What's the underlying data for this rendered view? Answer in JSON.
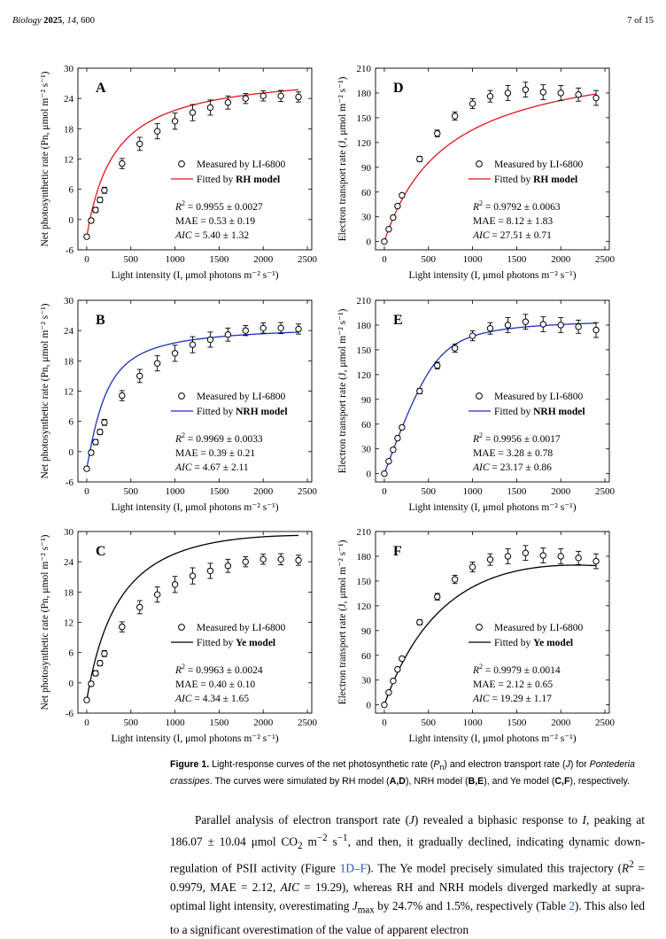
{
  "header": {
    "journal": "Biology",
    "year": "2025",
    "volume": "14",
    "article": "600",
    "page": "7 of 15"
  },
  "colors": {
    "rh": "#e0161e",
    "nrh": "#1f2fbf",
    "ye": "#000000"
  },
  "chart_data": [
    {
      "panel": "A",
      "type": "scatter",
      "fit_label_prefix": "Fitted by ",
      "fit_model": "RH model",
      "measured_label": "Measured by LI-6800",
      "xlabel": "Light intensity (I, μmol photons m⁻² s⁻¹)",
      "ylabel": "Net photosynthetic rate (Pn, μmol m⁻² s⁻¹)",
      "xlim": [
        -100,
        2550
      ],
      "ylim": [
        -6,
        30
      ],
      "xticks": [
        0,
        500,
        1000,
        1500,
        2000,
        2500
      ],
      "yticks": [
        -6,
        0,
        6,
        12,
        18,
        24,
        30
      ],
      "x": [
        0,
        50,
        100,
        150,
        200,
        400,
        600,
        800,
        1000,
        1200,
        1400,
        1600,
        1800,
        2000,
        2200,
        2400
      ],
      "y": [
        -3.4,
        -0.2,
        1.9,
        3.9,
        5.8,
        11.1,
        15.0,
        17.5,
        19.5,
        21.2,
        22.2,
        23.2,
        24.0,
        24.5,
        24.5,
        24.3
      ],
      "err": [
        0.4,
        0.4,
        0.5,
        0.5,
        0.6,
        1.0,
        1.3,
        1.5,
        1.6,
        1.6,
        1.5,
        1.3,
        1.0,
        1.0,
        1.1,
        1.0
      ],
      "fit": {
        "kind": "rh",
        "a": 0.104,
        "pmax": 33.0,
        "rd": 3.4
      },
      "stats": {
        "r2": "= 0.9955 ± 0.0027",
        "mae": "MAE = 0.53 ± 0.19",
        "aic": "= 5.40 ± 1.32"
      }
    },
    {
      "panel": "D",
      "type": "scatter",
      "fit_label_prefix": "Fitted by ",
      "fit_model": "RH model",
      "measured_label": "Measured by LI-6800",
      "xlabel": "Light intensity (I, μmol photons m⁻² s⁻¹)",
      "ylabel": "Electron transport rate (J, μmol m⁻² s⁻¹)",
      "xlim": [
        -100,
        2550
      ],
      "ylim": [
        -10,
        210
      ],
      "xticks": [
        0,
        500,
        1000,
        1500,
        2000,
        2500
      ],
      "yticks": [
        0,
        30,
        60,
        90,
        120,
        150,
        180,
        210
      ],
      "x": [
        0,
        50,
        100,
        150,
        200,
        400,
        600,
        800,
        1000,
        1200,
        1400,
        1600,
        1800,
        2000,
        2200,
        2400
      ],
      "y": [
        0,
        15,
        29,
        43,
        56,
        100,
        131,
        152,
        167,
        176,
        180,
        184,
        181,
        180,
        178,
        174
      ],
      "err": [
        1,
        1,
        2,
        2,
        2,
        3,
        4,
        5,
        6,
        7,
        9,
        9,
        9,
        9,
        8,
        9
      ],
      "fit": {
        "kind": "rh",
        "a": 0.325,
        "pmax": 232.0,
        "rd": 0
      },
      "stats": {
        "r2": "= 0.9792 ± 0.0063",
        "mae": "MAE = 8.12 ± 1.83",
        "aic": "= 27.51 ± 0.71"
      }
    },
    {
      "panel": "B",
      "type": "scatter",
      "fit_label_prefix": "Fitted by ",
      "fit_model": "NRH model",
      "measured_label": "Measured by LI-6800",
      "xlabel": "Light intensity (I, μmol photons m⁻² s⁻¹)",
      "ylabel": "Net photosynthetic rate (Pn, μmol m⁻² s⁻¹)",
      "xlim": [
        -100,
        2550
      ],
      "ylim": [
        -6,
        30
      ],
      "xticks": [
        0,
        500,
        1000,
        1500,
        2000,
        2500
      ],
      "yticks": [
        -6,
        0,
        6,
        12,
        18,
        24,
        30
      ],
      "x": [
        0,
        50,
        100,
        150,
        200,
        400,
        600,
        800,
        1000,
        1200,
        1400,
        1600,
        1800,
        2000,
        2200,
        2400
      ],
      "y": [
        -3.4,
        -0.2,
        1.9,
        3.9,
        5.8,
        11.1,
        15.0,
        17.5,
        19.5,
        21.2,
        22.2,
        23.2,
        24.0,
        24.5,
        24.5,
        24.3
      ],
      "err": [
        0.4,
        0.4,
        0.5,
        0.5,
        0.6,
        1.0,
        1.3,
        1.5,
        1.6,
        1.6,
        1.5,
        1.3,
        1.0,
        1.0,
        1.1,
        1.0
      ],
      "fit": {
        "kind": "nrh",
        "a": 0.102,
        "pmax": 28.6,
        "rd": 3.4,
        "theta": 0.55
      },
      "stats": {
        "r2": "= 0.9969 ± 0.0033",
        "mae": "MAE = 0.39 ± 0.21",
        "aic": "= 4.67 ± 2.11"
      }
    },
    {
      "panel": "E",
      "type": "scatter",
      "fit_label_prefix": "Fitted by ",
      "fit_model": "NRH model",
      "measured_label": "Measured by LI-6800",
      "xlabel": "Light intensity (I, μmol photons m⁻² s⁻¹)",
      "ylabel": "Electron transport rate (J, μmol m⁻² s⁻¹)",
      "xlim": [
        -100,
        2550
      ],
      "ylim": [
        -10,
        210
      ],
      "xticks": [
        0,
        500,
        1000,
        1500,
        2000,
        2500
      ],
      "yticks": [
        0,
        30,
        60,
        90,
        120,
        150,
        180,
        210
      ],
      "x": [
        0,
        50,
        100,
        150,
        200,
        400,
        600,
        800,
        1000,
        1200,
        1400,
        1600,
        1800,
        2000,
        2200,
        2400
      ],
      "y": [
        0,
        15,
        29,
        43,
        56,
        100,
        131,
        152,
        167,
        176,
        180,
        184,
        181,
        180,
        178,
        174
      ],
      "err": [
        1,
        1,
        2,
        2,
        2,
        3,
        4,
        5,
        6,
        7,
        9,
        9,
        9,
        9,
        8,
        9
      ],
      "fit": {
        "kind": "nrh",
        "a": 0.29,
        "pmax": 188.8,
        "rd": 0,
        "theta": 0.9
      },
      "stats": {
        "r2": "= 0.9956 ± 0.0017",
        "mae": "MAE = 3.28 ± 0.78",
        "aic": "= 23.17 ± 0.86"
      }
    },
    {
      "panel": "C",
      "type": "scatter",
      "fit_label_prefix": "Fitted by ",
      "fit_model": "Ye model",
      "measured_label": "Measured by LI-6800",
      "xlabel": "Light intensity (I, μmol photons m⁻² s⁻¹)",
      "ylabel": "Net photosynthetic rate (Pn, μmol m⁻² s⁻¹)",
      "xlim": [
        -100,
        2550
      ],
      "ylim": [
        -6,
        30
      ],
      "xticks": [
        0,
        500,
        1000,
        1500,
        2000,
        2500
      ],
      "yticks": [
        -6,
        0,
        6,
        12,
        18,
        24,
        30
      ],
      "x": [
        0,
        50,
        100,
        150,
        200,
        400,
        600,
        800,
        1000,
        1200,
        1400,
        1600,
        1800,
        2000,
        2200,
        2400
      ],
      "y": [
        -3.4,
        -0.2,
        1.9,
        3.9,
        5.8,
        11.1,
        15.0,
        17.5,
        19.5,
        21.2,
        22.2,
        23.2,
        24.0,
        24.5,
        24.5,
        24.3
      ],
      "err": [
        0.4,
        0.4,
        0.5,
        0.5,
        0.6,
        1.0,
        1.3,
        1.5,
        1.6,
        1.6,
        1.5,
        1.3,
        1.0,
        1.0,
        1.1,
        1.0
      ],
      "fit": {
        "kind": "ye",
        "a": 0.102,
        "beta": 4.8e-05,
        "gamma": 0.00235,
        "rd": 3.4
      },
      "stats": {
        "r2": "= 0.9963 ± 0.0024",
        "mae": "MAE = 0.40 ± 0.10",
        "aic": "= 4.34 ± 1.65"
      }
    },
    {
      "panel": "F",
      "type": "scatter",
      "fit_label_prefix": "Fitted by ",
      "fit_model": "Ye model",
      "measured_label": "Measured by LI-6800",
      "xlabel": "Light intensity (I, μmol photons m⁻² s⁻¹)",
      "ylabel": "Electron transport rate (J, μmol m⁻² s⁻¹)",
      "xlim": [
        -100,
        2550
      ],
      "ylim": [
        -10,
        210
      ],
      "xticks": [
        0,
        500,
        1000,
        1500,
        2000,
        2500
      ],
      "yticks": [
        0,
        30,
        60,
        90,
        120,
        150,
        180,
        210
      ],
      "x": [
        0,
        50,
        100,
        150,
        200,
        400,
        600,
        800,
        1000,
        1200,
        1400,
        1600,
        1800,
        2000,
        2200,
        2400
      ],
      "y": [
        0,
        15,
        29,
        43,
        56,
        100,
        131,
        152,
        167,
        176,
        180,
        184,
        181,
        180,
        178,
        174
      ],
      "err": [
        1,
        1,
        2,
        2,
        2,
        3,
        4,
        5,
        6,
        7,
        9,
        9,
        9,
        9,
        8,
        9
      ],
      "fit": {
        "kind": "ye",
        "a": 0.3,
        "beta": 0.00012,
        "gamma": 0.00085,
        "rd": 0
      },
      "stats": {
        "r2": "= 0.9979 ± 0.0014",
        "mae": "MAE = 2.12 ± 0.65",
        "aic": "= 19.29 ± 1.17"
      }
    }
  ],
  "caption": {
    "label": "Figure 1.",
    "t1": " Light-response curves of the net photosynthetic rate (",
    "pn": "P",
    "pn_sub": "n",
    "t2": ") and electron transport rate (",
    "j": "J",
    "t3": ") for ",
    "species": "Pontederia crassipes",
    "t4": ". The curves were simulated by RH model (",
    "ad": "A,D",
    "t5": "), NRH model (",
    "be": "B,E",
    "t6": "), and Ye model (",
    "cf": "C,F",
    "t7": "), respectively."
  },
  "body": {
    "p1": "Parallel analysis of electron transport rate (",
    "j1": "J",
    "p2": ") revealed a biphasic response to ",
    "i1": "I",
    "p3": ", peaking at 186.07 ± 10.04 μmol CO",
    "co2sub": "2",
    "p4": " m",
    "sup1": "−2",
    "p5": " s",
    "sup2": "−1",
    "p6": ", and then, it gradually declined, indicating dynamic down-regulation of PSII activity (Figure ",
    "figref": "1D–F",
    "p7": "). The Ye model precisely simulated this trajectory (",
    "r2": "R",
    "r2sup": "2",
    "p8": " = 0.9979, MAE = 2.12, ",
    "aic": "AIC",
    "p9": " = 19.29), whereas RH and NRH models diverged markedly at supra-optimal light intensity, overestimating ",
    "jmax": "J",
    "jmaxsub": "max",
    "p10": " by 24.7% and 1.5%, respectively (Table ",
    "tabref": "2",
    "p11": "). This also led to a significant overestimation of the value of apparent electron"
  }
}
